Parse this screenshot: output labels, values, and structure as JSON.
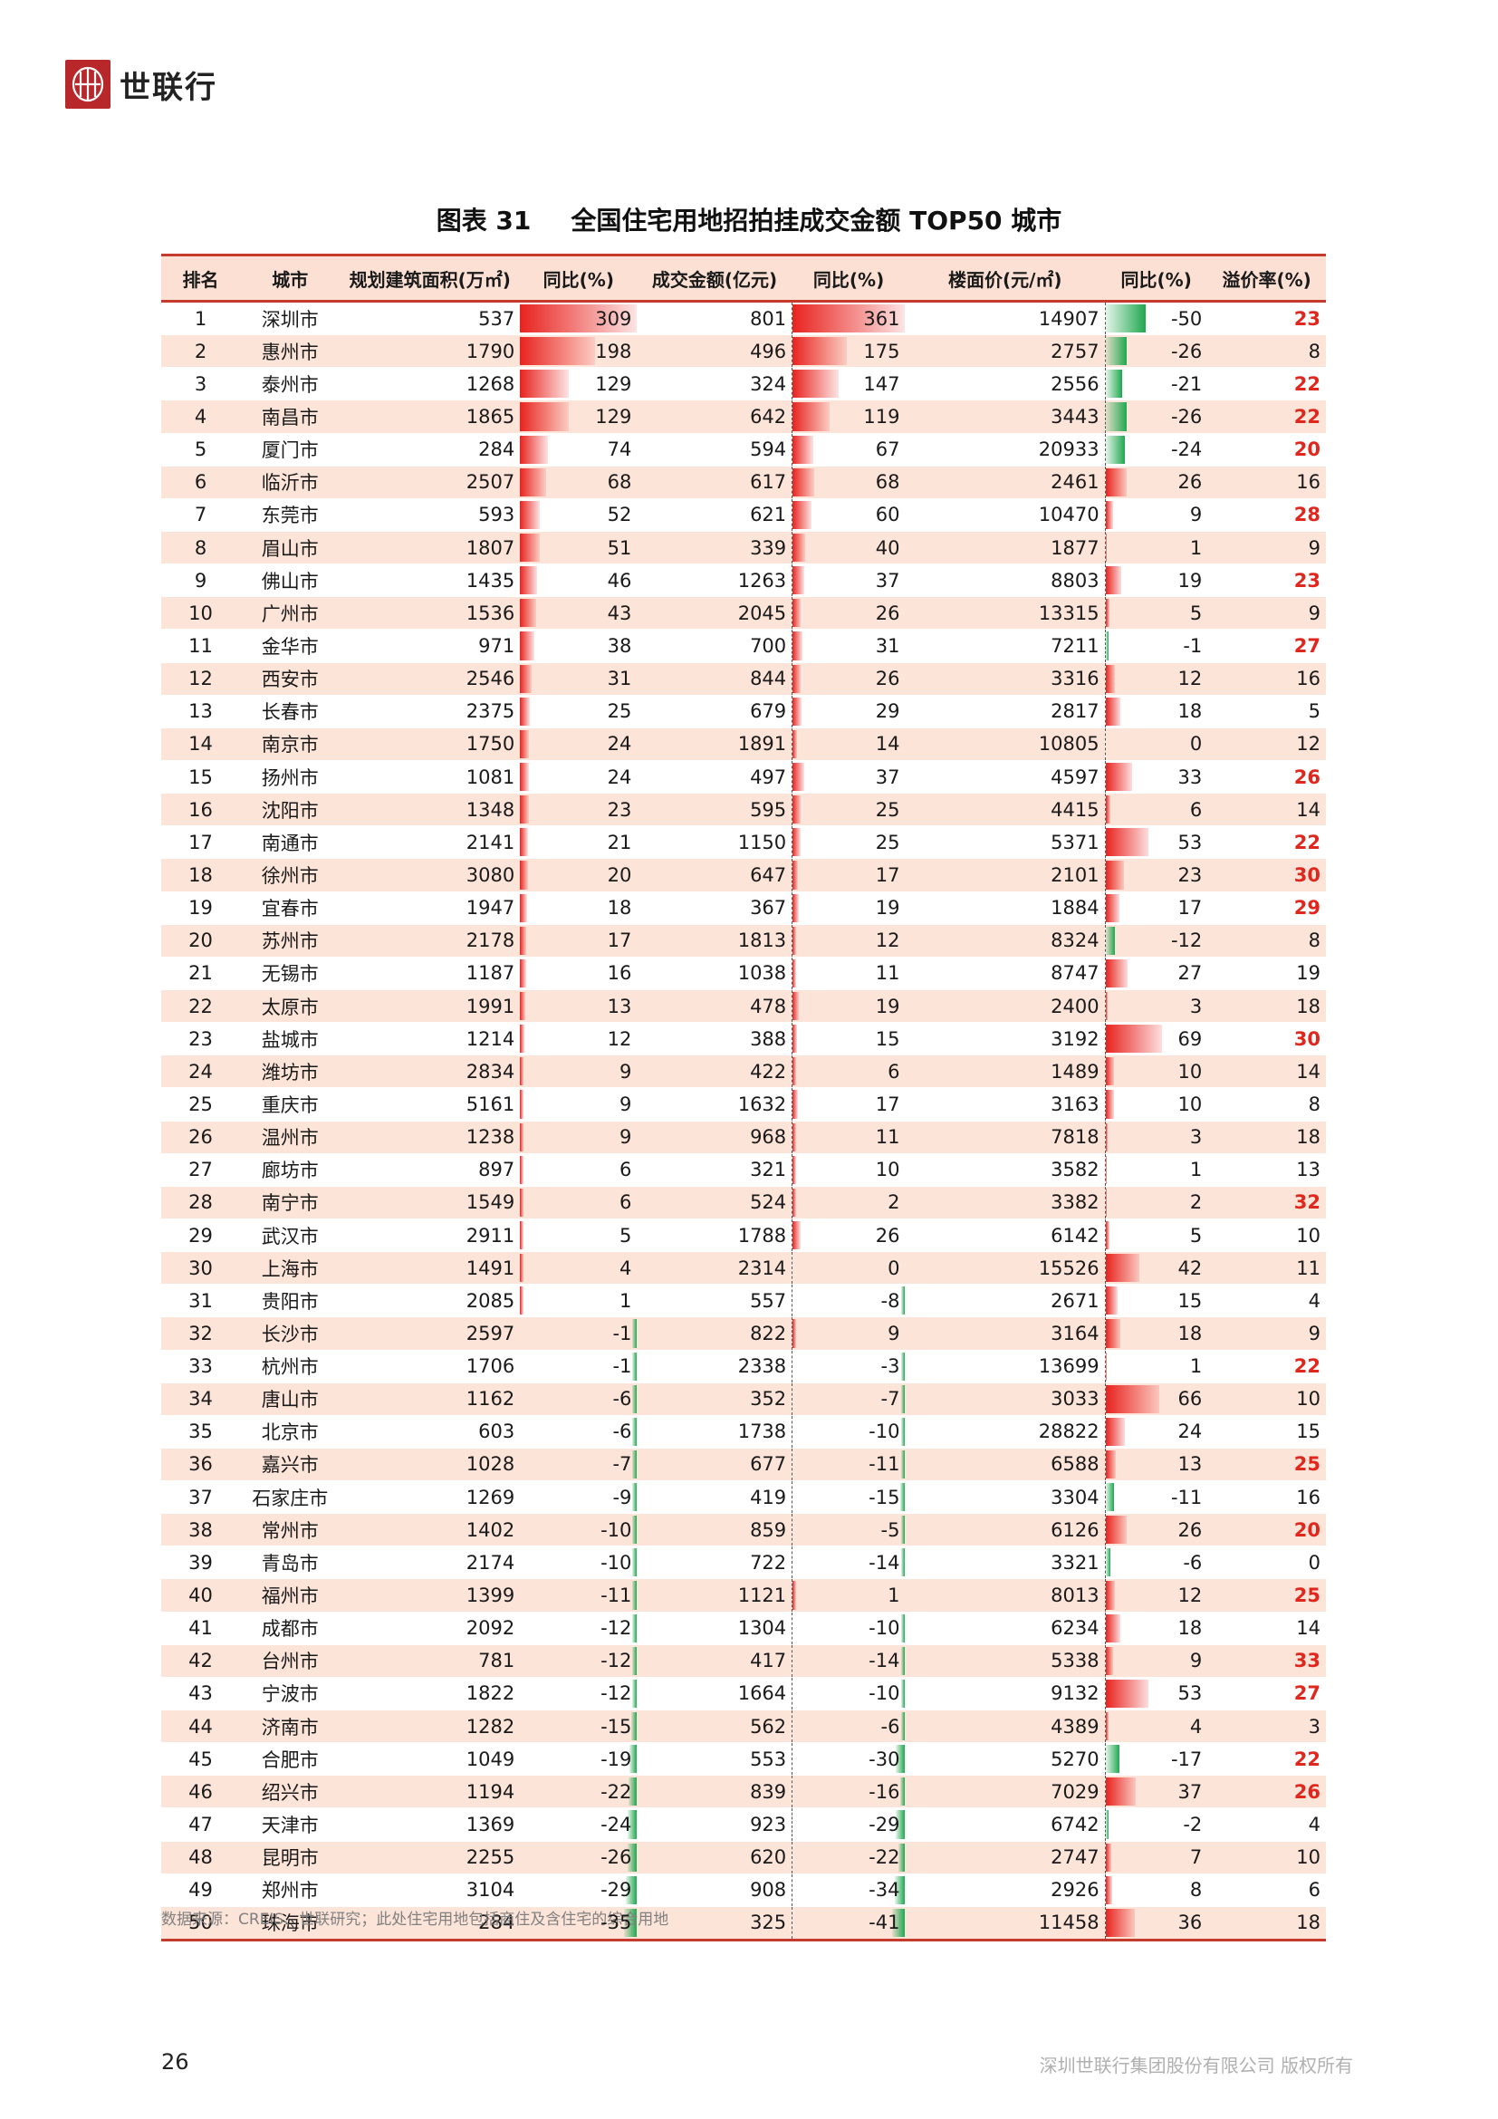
{
  "brand": {
    "name": "世联行"
  },
  "figure": {
    "number": "图表 31",
    "title": "全国住宅用地招拍挂成交金额 TOP50 城市"
  },
  "table": {
    "headers": [
      "排名",
      "城市",
      "规划建筑面积(万㎡)",
      "同比(%)",
      "成交金额(亿元)",
      "同比(%)",
      "楼面价(元/㎡)",
      "同比(%)",
      "溢价率(%)"
    ],
    "rows": [
      [
        "1",
        "深圳市",
        "537",
        "309",
        "801",
        "361",
        "14907",
        "-50",
        "23"
      ],
      [
        "2",
        "惠州市",
        "1790",
        "198",
        "496",
        "175",
        "2757",
        "-26",
        "8"
      ],
      [
        "3",
        "泰州市",
        "1268",
        "129",
        "324",
        "147",
        "2556",
        "-21",
        "22"
      ],
      [
        "4",
        "南昌市",
        "1865",
        "129",
        "642",
        "119",
        "3443",
        "-26",
        "22"
      ],
      [
        "5",
        "厦门市",
        "284",
        "74",
        "594",
        "67",
        "20933",
        "-24",
        "20"
      ],
      [
        "6",
        "临沂市",
        "2507",
        "68",
        "617",
        "68",
        "2461",
        "26",
        "16"
      ],
      [
        "7",
        "东莞市",
        "593",
        "52",
        "621",
        "60",
        "10470",
        "9",
        "28"
      ],
      [
        "8",
        "眉山市",
        "1807",
        "51",
        "339",
        "40",
        "1877",
        "1",
        "9"
      ],
      [
        "9",
        "佛山市",
        "1435",
        "46",
        "1263",
        "37",
        "8803",
        "19",
        "23"
      ],
      [
        "10",
        "广州市",
        "1536",
        "43",
        "2045",
        "26",
        "13315",
        "5",
        "9"
      ],
      [
        "11",
        "金华市",
        "971",
        "38",
        "700",
        "31",
        "7211",
        "-1",
        "27"
      ],
      [
        "12",
        "西安市",
        "2546",
        "31",
        "844",
        "26",
        "3316",
        "12",
        "16"
      ],
      [
        "13",
        "长春市",
        "2375",
        "25",
        "679",
        "29",
        "2817",
        "18",
        "5"
      ],
      [
        "14",
        "南京市",
        "1750",
        "24",
        "1891",
        "14",
        "10805",
        "0",
        "12"
      ],
      [
        "15",
        "扬州市",
        "1081",
        "24",
        "497",
        "37",
        "4597",
        "33",
        "26"
      ],
      [
        "16",
        "沈阳市",
        "1348",
        "23",
        "595",
        "25",
        "4415",
        "6",
        "14"
      ],
      [
        "17",
        "南通市",
        "2141",
        "21",
        "1150",
        "25",
        "5371",
        "53",
        "22"
      ],
      [
        "18",
        "徐州市",
        "3080",
        "20",
        "647",
        "17",
        "2101",
        "23",
        "30"
      ],
      [
        "19",
        "宜春市",
        "1947",
        "18",
        "367",
        "19",
        "1884",
        "17",
        "29"
      ],
      [
        "20",
        "苏州市",
        "2178",
        "17",
        "1813",
        "12",
        "8324",
        "-12",
        "8"
      ],
      [
        "21",
        "无锡市",
        "1187",
        "16",
        "1038",
        "11",
        "8747",
        "27",
        "19"
      ],
      [
        "22",
        "太原市",
        "1991",
        "13",
        "478",
        "19",
        "2400",
        "3",
        "18"
      ],
      [
        "23",
        "盐城市",
        "1214",
        "12",
        "388",
        "15",
        "3192",
        "69",
        "30"
      ],
      [
        "24",
        "潍坊市",
        "2834",
        "9",
        "422",
        "6",
        "1489",
        "10",
        "14"
      ],
      [
        "25",
        "重庆市",
        "5161",
        "9",
        "1632",
        "17",
        "3163",
        "10",
        "8"
      ],
      [
        "26",
        "温州市",
        "1238",
        "9",
        "968",
        "11",
        "7818",
        "3",
        "18"
      ],
      [
        "27",
        "廊坊市",
        "897",
        "6",
        "321",
        "10",
        "3582",
        "1",
        "13"
      ],
      [
        "28",
        "南宁市",
        "1549",
        "6",
        "524",
        "2",
        "3382",
        "2",
        "32"
      ],
      [
        "29",
        "武汉市",
        "2911",
        "5",
        "1788",
        "26",
        "6142",
        "5",
        "10"
      ],
      [
        "30",
        "上海市",
        "1491",
        "4",
        "2314",
        "0",
        "15526",
        "42",
        "11"
      ],
      [
        "31",
        "贵阳市",
        "2085",
        "1",
        "557",
        "-8",
        "2671",
        "15",
        "4"
      ],
      [
        "32",
        "长沙市",
        "2597",
        "-1",
        "822",
        "9",
        "3164",
        "18",
        "9"
      ],
      [
        "33",
        "杭州市",
        "1706",
        "-1",
        "2338",
        "-3",
        "13699",
        "1",
        "22"
      ],
      [
        "34",
        "唐山市",
        "1162",
        "-6",
        "352",
        "-7",
        "3033",
        "66",
        "10"
      ],
      [
        "35",
        "北京市",
        "603",
        "-6",
        "1738",
        "-10",
        "28822",
        "24",
        "15"
      ],
      [
        "36",
        "嘉兴市",
        "1028",
        "-7",
        "677",
        "-11",
        "6588",
        "13",
        "25"
      ],
      [
        "37",
        "石家庄市",
        "1269",
        "-9",
        "419",
        "-15",
        "3304",
        "-11",
        "16"
      ],
      [
        "38",
        "常州市",
        "1402",
        "-10",
        "859",
        "-5",
        "6126",
        "26",
        "20"
      ],
      [
        "39",
        "青岛市",
        "2174",
        "-10",
        "722",
        "-14",
        "3321",
        "-6",
        "0"
      ],
      [
        "40",
        "福州市",
        "1399",
        "-11",
        "1121",
        "1",
        "8013",
        "12",
        "25"
      ],
      [
        "41",
        "成都市",
        "2092",
        "-12",
        "1304",
        "-10",
        "6234",
        "18",
        "14"
      ],
      [
        "42",
        "台州市",
        "781",
        "-12",
        "417",
        "-14",
        "5338",
        "9",
        "33"
      ],
      [
        "43",
        "宁波市",
        "1822",
        "-12",
        "1664",
        "-10",
        "9132",
        "53",
        "27"
      ],
      [
        "44",
        "济南市",
        "1282",
        "-15",
        "562",
        "-6",
        "4389",
        "4",
        "3"
      ],
      [
        "45",
        "合肥市",
        "1049",
        "-19",
        "553",
        "-30",
        "5270",
        "-17",
        "22"
      ],
      [
        "46",
        "绍兴市",
        "1194",
        "-22",
        "839",
        "-16",
        "7029",
        "37",
        "26"
      ],
      [
        "47",
        "天津市",
        "1369",
        "-24",
        "923",
        "-29",
        "6742",
        "-2",
        "4"
      ],
      [
        "48",
        "昆明市",
        "2255",
        "-26",
        "620",
        "-22",
        "2747",
        "7",
        "10"
      ],
      [
        "49",
        "郑州市",
        "3104",
        "-29",
        "908",
        "-34",
        "2926",
        "8",
        "6"
      ],
      [
        "50",
        "珠海市",
        "284",
        "-35",
        "325",
        "-41",
        "11458",
        "36",
        "18"
      ]
    ]
  },
  "colors": {
    "positive_bar": "#e8231f",
    "negative_bar": "#1fa84f",
    "premium_highlight": "#e0271d",
    "rule": "#c43b2e"
  },
  "source_note": "数据来源：CREIS、世联研究；此处住宅用地包括商住及含住宅的综合用地",
  "page_number": "26",
  "footer_text": "深圳世联行集团股份有限公司 版权所有"
}
